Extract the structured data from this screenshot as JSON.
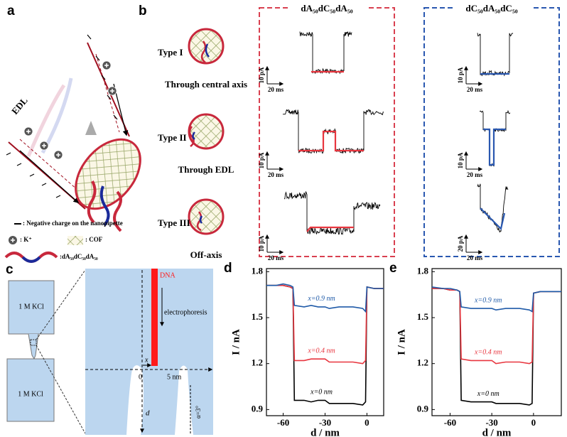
{
  "panel_labels": [
    "a",
    "b",
    "c"
  ],
  "panel_a": {
    "edl": "EDL",
    "legend": [
      ": Negative charge on the nanopipette",
      ": K⁺",
      ": COF",
      ":dA₅₀dC₅₀dA₅₀"
    ]
  },
  "panel_b": {
    "types": [
      {
        "name": "Type I",
        "mode": "Through central axis"
      },
      {
        "name": "Type II",
        "mode": "Through EDL"
      },
      {
        "name": "Type III",
        "mode": "Off-axis"
      }
    ],
    "groups": [
      {
        "title": "dA₅₀dC₅₀dA₅₀",
        "scales": [
          [
            "10 pA",
            "20 ms"
          ],
          [
            "10 pA",
            "20 ms"
          ],
          [
            "10 pA",
            "20 ms"
          ]
        ]
      },
      {
        "title": "dC₅₀dA₅₀dC₅₀",
        "scales": [
          [
            "10 pA",
            "20 ms"
          ],
          [
            "10 pA",
            "20 ms"
          ],
          [
            "20 pA",
            "20 ms"
          ]
        ]
      }
    ]
  },
  "panel_c": {
    "reservoirs": [
      "1 M KCl",
      "1 M KCl"
    ],
    "dna": "DNA",
    "arrow": "electrophoresis",
    "x": "x",
    "zero": "0",
    "width": "5 nm",
    "d": "d",
    "angle": "α=3°"
  },
  "chart_data": [
    {
      "type": "line",
      "panel": "d",
      "xlabel": "d / nm",
      "ylabel": "I / nA",
      "x": [
        -72,
        -65,
        -60,
        -55,
        -53,
        -52,
        -45,
        -40,
        -35,
        -30,
        -27,
        -20,
        -10,
        -3,
        -1,
        0,
        5,
        12
      ],
      "series": [
        {
          "name": "x=0 nm",
          "color": "#000000",
          "values": [
            1.71,
            1.71,
            1.71,
            1.7,
            1.69,
            0.96,
            0.96,
            0.95,
            0.96,
            0.96,
            0.94,
            0.94,
            0.94,
            0.93,
            0.95,
            1.7,
            1.69,
            1.69
          ]
        },
        {
          "name": "x=0.4 nm",
          "color": "#e8363f",
          "values": [
            1.71,
            1.71,
            1.71,
            1.7,
            1.69,
            1.22,
            1.22,
            1.23,
            1.23,
            1.23,
            1.21,
            1.21,
            1.21,
            1.2,
            1.22,
            1.7,
            1.69,
            1.69
          ]
        },
        {
          "name": "x=0.9 nm",
          "color": "#1f5aa8",
          "values": [
            1.71,
            1.71,
            1.72,
            1.71,
            1.7,
            1.58,
            1.57,
            1.58,
            1.57,
            1.57,
            1.56,
            1.57,
            1.57,
            1.56,
            1.54,
            1.7,
            1.69,
            1.69
          ]
        }
      ],
      "xlim": [
        -72,
        12
      ],
      "ylim": [
        0.86,
        1.82
      ],
      "xticks": [
        -60,
        -30,
        0
      ],
      "yticks": [
        0.9,
        1.2,
        1.5,
        1.8
      ]
    },
    {
      "type": "line",
      "panel": "e",
      "xlabel": "d / nm",
      "ylabel": "I / nA",
      "x": [
        -73,
        -65,
        -60,
        -55,
        -53,
        -52,
        -45,
        -40,
        -35,
        -30,
        -27,
        -20,
        -10,
        -3,
        -1,
        0,
        5,
        12,
        20
      ],
      "series": [
        {
          "name": "x=0 nm",
          "color": "#000000",
          "values": [
            1.69,
            1.69,
            1.68,
            1.68,
            1.67,
            0.96,
            0.95,
            0.95,
            0.95,
            0.95,
            0.94,
            0.94,
            0.94,
            0.93,
            0.94,
            1.66,
            1.67,
            1.67,
            1.67
          ]
        },
        {
          "name": "x=0.4 nm",
          "color": "#e8363f",
          "values": [
            1.69,
            1.69,
            1.68,
            1.68,
            1.67,
            1.23,
            1.22,
            1.22,
            1.22,
            1.22,
            1.2,
            1.21,
            1.21,
            1.2,
            1.21,
            1.66,
            1.67,
            1.67,
            1.67
          ]
        },
        {
          "name": "x=0.9 nm",
          "color": "#1f5aa8",
          "values": [
            1.7,
            1.69,
            1.69,
            1.68,
            1.67,
            1.57,
            1.56,
            1.56,
            1.56,
            1.56,
            1.55,
            1.56,
            1.56,
            1.55,
            1.54,
            1.66,
            1.67,
            1.67,
            1.67
          ]
        }
      ],
      "xlim": [
        -73,
        20
      ],
      "ylim": [
        0.86,
        1.82
      ],
      "xticks": [
        -60,
        -30,
        0
      ],
      "yticks": [
        0.9,
        1.2,
        1.5,
        1.8
      ]
    }
  ]
}
